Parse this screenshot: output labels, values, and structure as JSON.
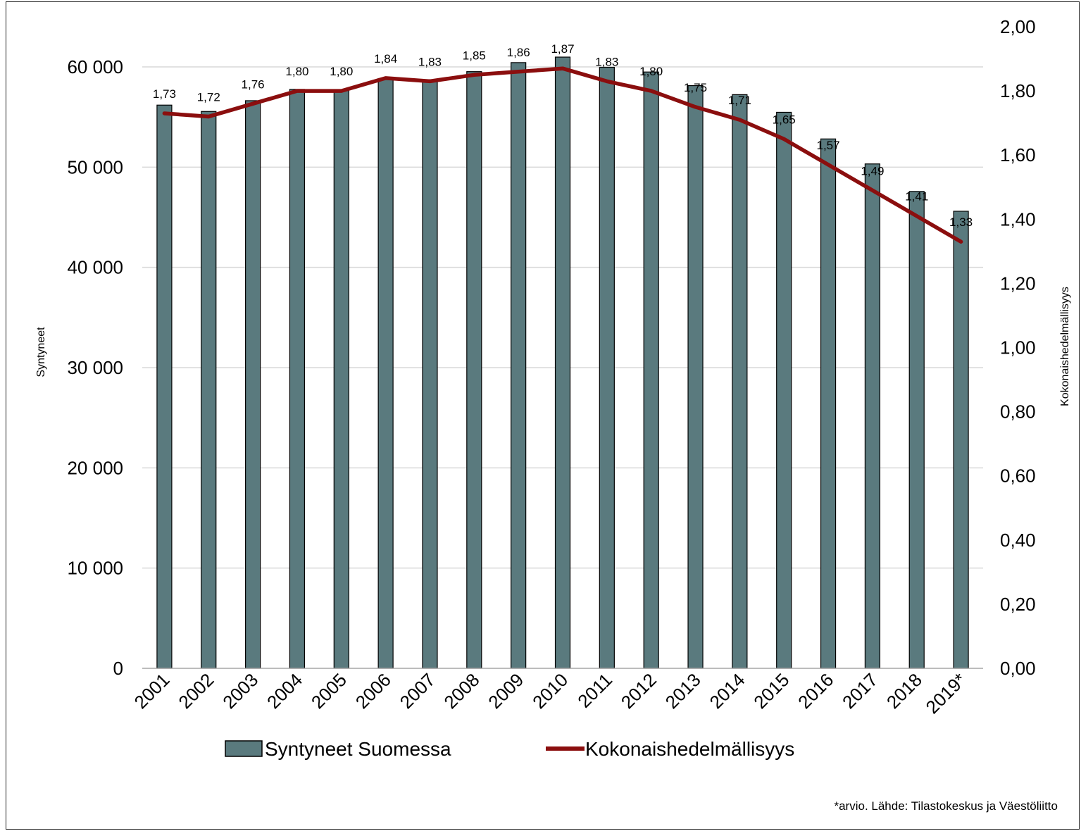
{
  "chart_data": {
    "type": "bar",
    "categories": [
      "2001",
      "2002",
      "2003",
      "2004",
      "2005",
      "2006",
      "2007",
      "2008",
      "2009",
      "2010",
      "2011",
      "2012",
      "2013",
      "2014",
      "2015",
      "2016",
      "2017",
      "2018",
      "2019*"
    ],
    "series": [
      {
        "name": "Syntyneet Suomessa",
        "type": "bar",
        "axis": "left",
        "color": "#5a7a7e",
        "values": [
          56189,
          55555,
          56630,
          57758,
          57745,
          58840,
          58729,
          59530,
          60430,
          60980,
          59961,
          59493,
          58134,
          57232,
          55472,
          52814,
          50321,
          47577,
          45600
        ]
      },
      {
        "name": "Kokonaishedelmällisyys",
        "type": "line",
        "axis": "right",
        "color": "#8b0e0e",
        "values": [
          1.73,
          1.72,
          1.76,
          1.8,
          1.8,
          1.84,
          1.83,
          1.85,
          1.86,
          1.87,
          1.83,
          1.8,
          1.75,
          1.71,
          1.65,
          1.57,
          1.49,
          1.41,
          1.33
        ],
        "labels": [
          "1,73",
          "1,72",
          "1,76",
          "1,80",
          "1,80",
          "1,84",
          "1,83",
          "1,85",
          "1,86",
          "1,87",
          "1,83",
          "1,80",
          "1,75",
          "1,71",
          "1,65",
          "1,57",
          "1,49",
          "1,41",
          "1,33"
        ]
      }
    ],
    "ylabel": "Syntyneet",
    "y2label": "Kokonaishedelmällisyys",
    "ylim": [
      0,
      60000
    ],
    "y2lim": [
      0,
      2.0
    ],
    "yticks": [
      0,
      10000,
      20000,
      30000,
      40000,
      50000,
      60000
    ],
    "yticklabels": [
      "0",
      "10 000",
      "20 000",
      "30 000",
      "40 000",
      "50 000",
      "60 000"
    ],
    "y2ticks": [
      0,
      0.2,
      0.4,
      0.6,
      0.8,
      1.0,
      1.2,
      1.4,
      1.6,
      1.8,
      2.0
    ],
    "y2ticklabels": [
      "0,00",
      "0,20",
      "0,40",
      "0,60",
      "0,80",
      "1,00",
      "1,20",
      "1,40",
      "1,60",
      "1,80",
      "2,00"
    ],
    "grid": true,
    "legend_position": "bottom",
    "source_note": "*arvio. Lähde: Tilastokeskus ja Väestöliitto"
  }
}
